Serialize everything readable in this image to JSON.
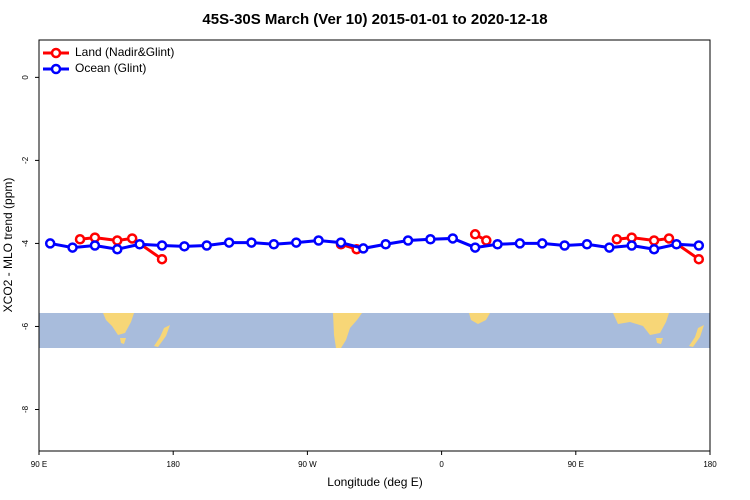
{
  "chart_data": {
    "type": "line",
    "title": "45S-30S March (Ver 10)   2015-01-01 to 2020-12-18",
    "x_label": "Longitude (deg E)",
    "y_label": "XCO2 - MLO trend (ppm)",
    "xlim": [
      90,
      540
    ],
    "ylim": [
      -9,
      0.9
    ],
    "xticks": [
      {
        "value": 90,
        "label": "90 E"
      },
      {
        "value": 180,
        "label": "180"
      },
      {
        "value": 270,
        "label": "90 W"
      },
      {
        "value": 360,
        "label": "0"
      },
      {
        "value": 450,
        "label": "90 E"
      },
      {
        "value": 540,
        "label": "180"
      }
    ],
    "yticks": [
      0,
      -2,
      -4,
      -6,
      -8
    ],
    "legend": "top-left",
    "series": [
      {
        "name": "Land (Nadir&Glint)",
        "color": "#ff0000",
        "x": [
          117.5,
          127.5,
          142.5,
          152.5,
          172.5,
          null,
          292.5,
          303,
          null,
          382.5,
          390,
          null,
          477.5,
          487.5,
          502.5,
          512.5,
          532.5
        ],
        "values": [
          -3.9,
          -3.86,
          -3.93,
          -3.88,
          -4.38,
          null,
          -4.02,
          -4.14,
          null,
          -3.78,
          -3.93,
          null,
          -3.9,
          -3.86,
          -3.93,
          -3.88,
          -4.38
        ]
      },
      {
        "name": "Ocean (Glint)",
        "color": "#0000ff",
        "x": [
          97.5,
          112.5,
          127.5,
          142.5,
          157.5,
          172.5,
          187.5,
          202.5,
          217.5,
          232.5,
          247.5,
          262.5,
          277.5,
          292.5,
          307.5,
          322.5,
          337.5,
          352.5,
          367.5,
          382.5,
          397.5,
          412.5,
          427.5,
          442.5,
          457.5,
          472.5,
          487.5,
          502.5,
          517.5,
          532.5
        ],
        "values": [
          -4.0,
          -4.1,
          -4.05,
          -4.14,
          -4.02,
          -4.05,
          -4.07,
          -4.05,
          -3.98,
          -3.98,
          -4.02,
          -3.98,
          -3.93,
          -3.98,
          -4.12,
          -4.02,
          -3.93,
          -3.9,
          -3.88,
          -4.1,
          -4.02,
          -4.0,
          -4.0,
          -4.05,
          -4.02,
          -4.1,
          -4.05,
          -4.14,
          -4.02,
          -4.05
        ]
      }
    ]
  }
}
